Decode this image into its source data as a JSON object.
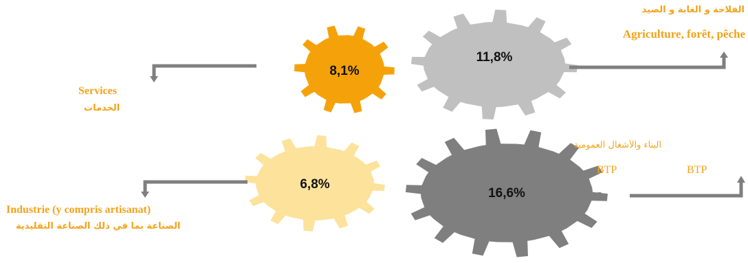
{
  "colors": {
    "gear_agriculture": "#c0c0c0",
    "gear_services": "#f5a20a",
    "gear_industrie": "#fde29c",
    "gear_btp": "#7f7f7f",
    "connector": "#7f7f7f",
    "label_text": "#f5a218"
  },
  "sectors": {
    "agriculture": {
      "value": "11,8%",
      "label_fr": "Agriculture, forêt, pêche",
      "label_ar": "الفلاحة و الغابة و الصيد"
    },
    "services": {
      "value": "8,1%",
      "label_fr": "Services",
      "label_ar": "الخدمات"
    },
    "industrie": {
      "value": "6,8%",
      "label_fr": "Industrie (y compris artisanat)",
      "label_ar": "الصناعة بما في ذلك الصناعة التقليدية"
    },
    "btp": {
      "value": "16,6%",
      "label_fr_1": "BTP",
      "label_fr_2": "BTP",
      "label_ar": "البناء والأشغال العمومية"
    }
  }
}
